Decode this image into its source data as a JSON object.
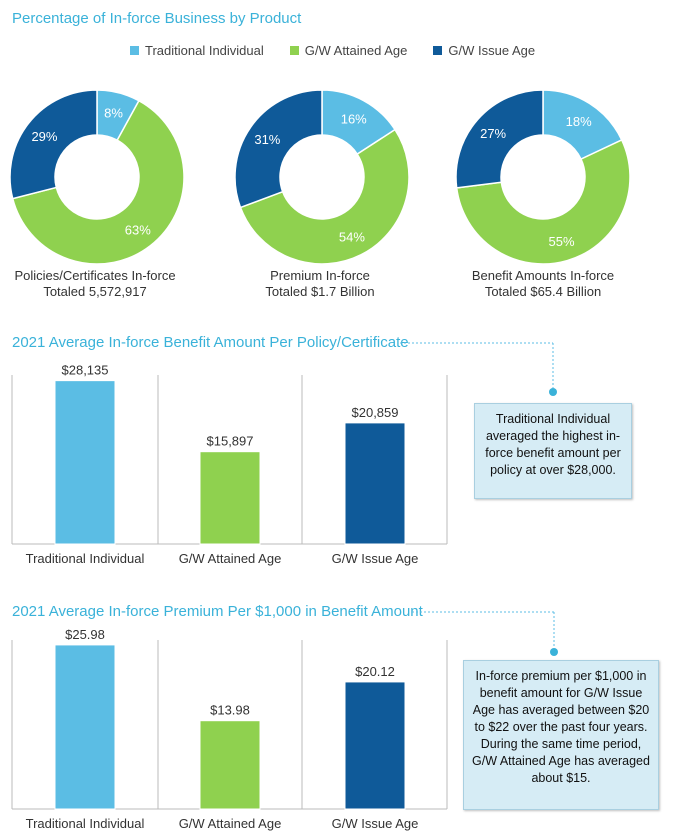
{
  "colors": {
    "traditional": "#5bbde4",
    "attained": "#8fd14f",
    "issue": "#0f5a99",
    "title": "#3ab2d9"
  },
  "section1": {
    "title": "Percentage of In-force Business by Product",
    "legend": [
      "Traditional Individual",
      "G/W Attained Age",
      "G/W Issue Age"
    ]
  },
  "section2": {
    "title": "2021 Average In-force Benefit Amount Per Policy/Certificate",
    "callout": "Traditional Individual averaged the highest in-force benefit amount per policy at over $28,000."
  },
  "section3": {
    "title": "2021 Average In-force Premium Per $1,000 in Benefit Amount",
    "callout": "In-force premium per $1,000 in benefit amount for G/W Issue Age has averaged between $20 to $22 over the past four years. During the same time period, G/W Attained Age has averaged about $15."
  },
  "chart_data": [
    {
      "type": "pie",
      "title": "Policies/Certificates In-force Totaled 5,572,917",
      "caption": [
        "Policies/Certificates In-force",
        "Totaled 5,572,917"
      ],
      "categories": [
        "Traditional Individual",
        "G/W Attained Age",
        "G/W Issue Age"
      ],
      "values": [
        8,
        63,
        29
      ],
      "labels": [
        "8%",
        "63%",
        "29%"
      ]
    },
    {
      "type": "pie",
      "title": "Premium In-force Totaled $1.7 Billion",
      "caption": [
        "Premium In-force",
        "Totaled $1.7 Billion"
      ],
      "categories": [
        "Traditional Individual",
        "G/W Attained Age",
        "G/W Issue Age"
      ],
      "values": [
        16,
        54,
        31
      ],
      "labels": [
        "16%",
        "54%",
        "31%"
      ]
    },
    {
      "type": "pie",
      "title": "Benefit Amounts In-force Totaled $65.4 Billion",
      "caption": [
        "Benefit Amounts In-force",
        "Totaled $65.4 Billion"
      ],
      "categories": [
        "Traditional Individual",
        "G/W Attained Age",
        "G/W Issue Age"
      ],
      "values": [
        18,
        55,
        27
      ],
      "labels": [
        "18%",
        "55%",
        "27%"
      ]
    },
    {
      "type": "bar",
      "title": "2021 Average In-force Benefit Amount Per Policy/Certificate",
      "categories": [
        "Traditional Individual",
        "G/W Attained Age",
        "G/W Issue Age"
      ],
      "values": [
        28135,
        15897,
        20859
      ],
      "labels": [
        "$28,135",
        "$15,897",
        "$20,859"
      ],
      "ylim": [
        0,
        31000
      ]
    },
    {
      "type": "bar",
      "title": "2021 Average In-force Premium Per $1,000 in Benefit Amount",
      "categories": [
        "Traditional Individual",
        "G/W Attained Age",
        "G/W Issue Age"
      ],
      "values": [
        25.98,
        13.98,
        20.12
      ],
      "labels": [
        "$25.98",
        "$13.98",
        "$20.12"
      ],
      "ylim": [
        0,
        28.5
      ]
    }
  ]
}
